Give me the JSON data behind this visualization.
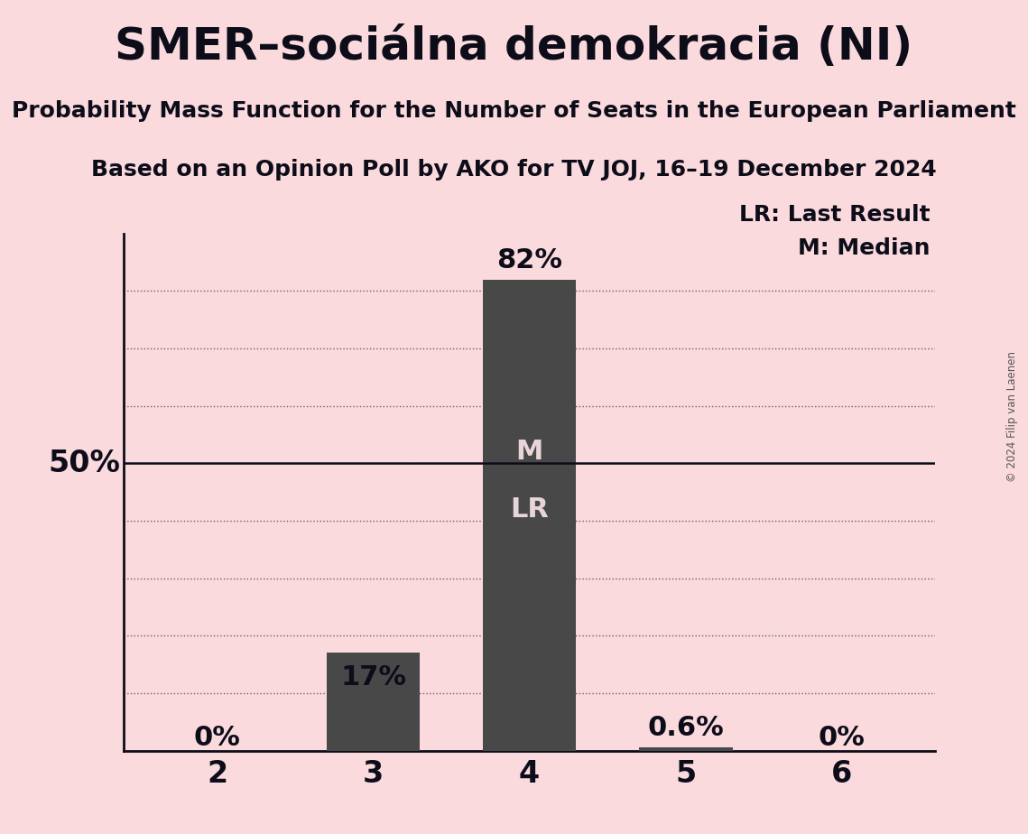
{
  "title": "SMER–sociálna demokracia (NI)",
  "subtitle1": "Probability Mass Function for the Number of Seats in the European Parliament",
  "subtitle2": "Based on an Opinion Poll by AKO for TV JOJ, 16–19 December 2024",
  "copyright": "© 2024 Filip van Laenen",
  "categories": [
    2,
    3,
    4,
    5,
    6
  ],
  "values": [
    0.0,
    17.0,
    82.0,
    0.6,
    0.0
  ],
  "bar_color": "#484848",
  "background_color": "#fadadd",
  "label_color_outside": "#0d0d1a",
  "label_color_inside": "#e8d5d8",
  "median": 4,
  "last_result": 4,
  "ylim": [
    0,
    90
  ],
  "ylabel_50": "50%",
  "legend_lr": "LR: Last Result",
  "legend_m": "M: Median",
  "grid_color": "#0d0d1a",
  "spine_color": "#0d0d1a",
  "figsize": [
    11.39,
    9.24
  ],
  "dpi": 100,
  "title_fontsize": 36,
  "subtitle_fontsize": 18,
  "label_fontsize": 22,
  "tick_fontsize": 24,
  "legend_fontsize": 18,
  "ylabel_fontsize": 24
}
